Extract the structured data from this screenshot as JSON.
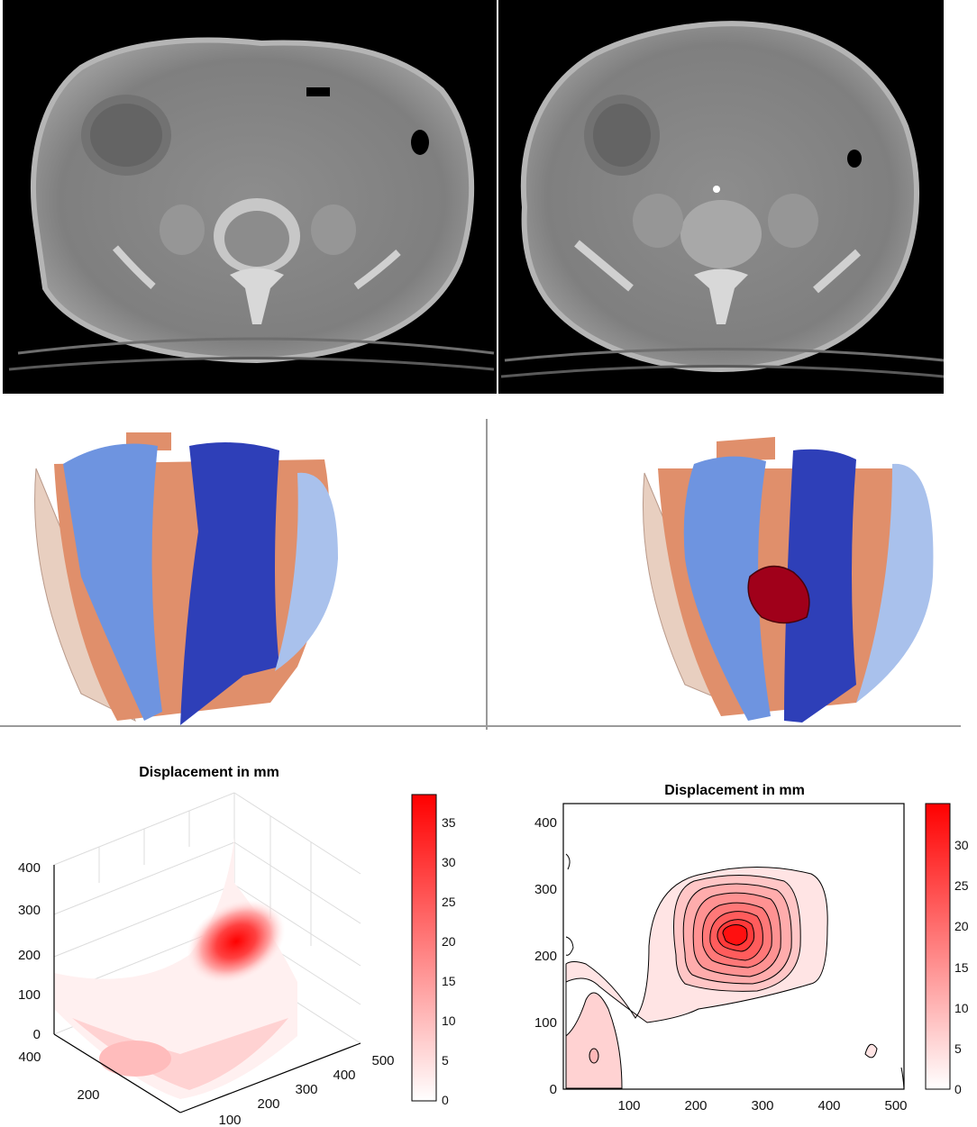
{
  "ct_panels": [
    {
      "label": ""
    },
    {
      "label": ""
    }
  ],
  "mesh_panels": [
    {
      "label": ""
    },
    {
      "label": ""
    }
  ],
  "charts": [
    {
      "title": "Displacement in mm",
      "z_ticks": [
        "0",
        "100",
        "200",
        "300",
        "400"
      ],
      "y_ticks": [
        "200",
        "400"
      ],
      "x_ticks": [
        "100",
        "200",
        "300",
        "400",
        "500"
      ],
      "colorbar_ticks": [
        "0",
        "5",
        "10",
        "15",
        "20",
        "25",
        "30",
        "35"
      ]
    },
    {
      "title": "Displacement in mm",
      "y_ticks": [
        "0",
        "100",
        "200",
        "300",
        "400"
      ],
      "x_ticks": [
        "100",
        "200",
        "300",
        "400",
        "500"
      ],
      "colorbar_ticks": [
        "0",
        "5",
        "10",
        "15",
        "20",
        "25",
        "30"
      ]
    }
  ],
  "chart_data": [
    {
      "type": "heatmap",
      "title": "Displacement in mm",
      "xlim": [
        0,
        500
      ],
      "ylim": [
        0,
        400
      ],
      "zlim": [
        0,
        400
      ],
      "colorbar_range": [
        0,
        39
      ],
      "peak_value": 38
    },
    {
      "type": "heatmap",
      "title": "Displacement in mm",
      "xlim": [
        0,
        510
      ],
      "ylim": [
        0,
        430
      ],
      "colorbar_range": [
        0,
        35
      ],
      "peak_value": 34,
      "peak_location": [
        255,
        235
      ]
    }
  ],
  "colors": {
    "ct_background": "#000000",
    "ct_tissue": "#8a8a8a",
    "muscle_orange": "#e08f6b",
    "muscle_light_blue": "#6e94e0",
    "muscle_dark_blue": "#2e3fb8",
    "bone_beige": "#e8cfc0",
    "hernia_red": "#a0001a",
    "heat_red": "#ff0000"
  }
}
